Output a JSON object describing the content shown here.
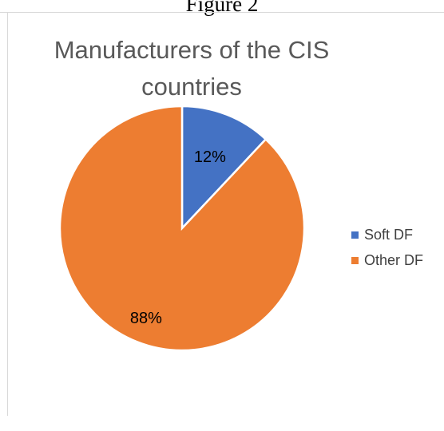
{
  "caption": "Figure 2",
  "colors": {
    "soft": "#4472c4",
    "other": "#ed7d31",
    "title": "#595959",
    "label": "#000000",
    "legend": "#404040"
  },
  "chart_data": {
    "type": "pie",
    "title": "Manufacturers of the CIS countries",
    "categories": [
      "Soft DF",
      "Other DF"
    ],
    "values": [
      12,
      88
    ],
    "labels": [
      "12%",
      "88%"
    ],
    "legend_position": "right"
  }
}
